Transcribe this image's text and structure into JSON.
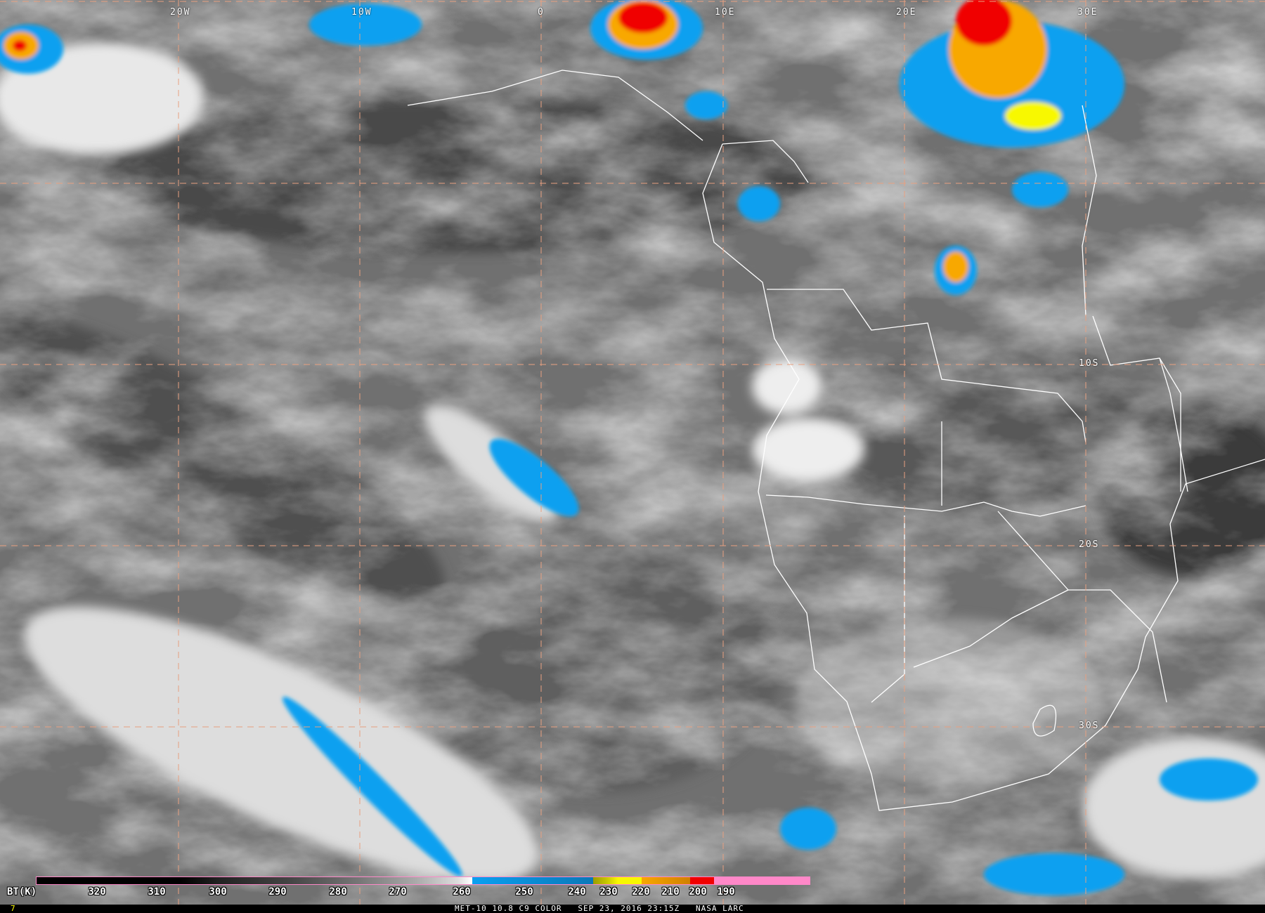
{
  "image": {
    "caption": "MET-10 10.8 C9 COLOR   SEP 23, 2016 23:15Z   NASA LARC",
    "frame_number": "7"
  },
  "grid": {
    "longitude_labels": [
      "20W",
      "10W",
      "0",
      "10E",
      "20E",
      "30E"
    ],
    "latitude_labels": [
      "10S",
      "20S",
      "30S"
    ],
    "line_color": "#e8a080"
  },
  "colorbar": {
    "title": "BT(K)",
    "ticks": [
      "320",
      "310",
      "300",
      "290",
      "280",
      "270",
      "260",
      "250",
      "240",
      "230",
      "220",
      "210",
      "200",
      "190"
    ],
    "colors": {
      "cold_pink": "#ff88c8",
      "red": "#f00000",
      "orange": "#f8a800",
      "yellow": "#f8f800",
      "olive": "#9c9c00",
      "blue": "#0aa0f0"
    }
  }
}
